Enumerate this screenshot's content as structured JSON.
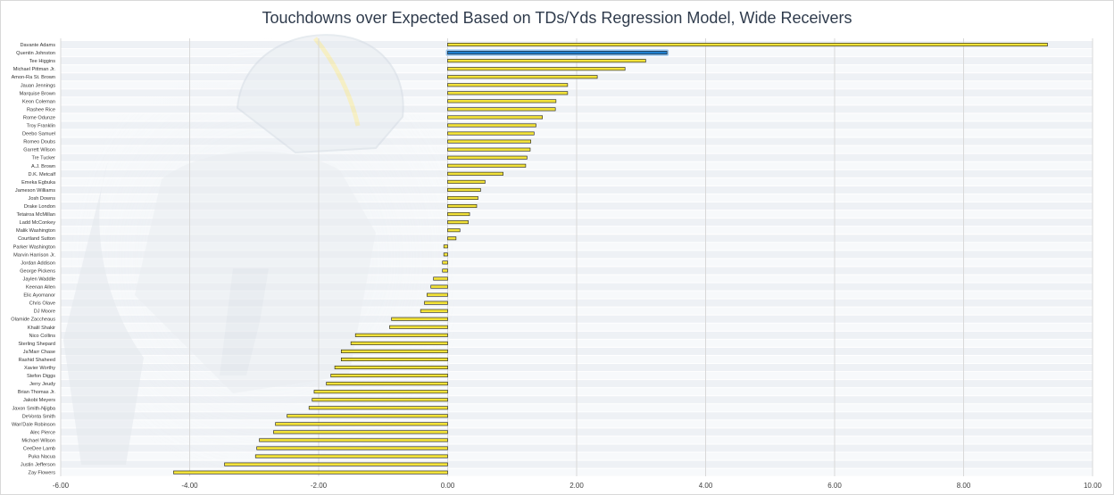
{
  "chart_data": {
    "type": "bar",
    "orientation": "horizontal",
    "title": "Touchdowns over Expected Based on TDs/Yds Regression Model, Wide Receivers",
    "xlabel": "",
    "ylabel": "",
    "xlim": [
      -6,
      10
    ],
    "xticks": [
      "-6.00",
      "-4.00",
      "-2.00",
      "0.00",
      "2.00",
      "4.00",
      "6.00",
      "8.00",
      "10.00"
    ],
    "grid": true,
    "legend": "none",
    "highlight": "Quentin Johnston",
    "colors": {
      "bar_fill": "#f2e23a",
      "bar_stroke": "#1a1a1a",
      "highlight_fill": "#1f7fcf",
      "highlight_glow": "#9cc8ef",
      "gridline": "#d9d9d9",
      "band": "#eef1f5"
    },
    "categories": [
      "Davante Adams",
      "Quentin Johnston",
      "Tee Higgins",
      "Michael Pittman Jr.",
      "Amon-Ra St. Brown",
      "Jauan Jennings",
      "Marquise Brown",
      "Keon Coleman",
      "Rashee Rice",
      "Rome Odunze",
      "Troy Franklin",
      "Deebo Samuel",
      "Romeo Doubs",
      "Garrett Wilson",
      "Tre Tucker",
      "A.J. Brown",
      "D.K. Metcalf",
      "Emeka Egbuka",
      "Jameson Williams",
      "Josh Downs",
      "Drake London",
      "Tetairoa McMillan",
      "Ladd McConkey",
      "Malik Washington",
      "Courtland Sutton",
      "Parker Washington",
      "Marvin Harrison Jr.",
      "Jordan Addison",
      "George Pickens",
      "Jaylen Waddle",
      "Keenan Allen",
      "Elic Ayomanor",
      "Chris Olave",
      "DJ Moore",
      "Olamide Zaccheaus",
      "Khalil Shakir",
      "Nico Collins",
      "Sterling Shepard",
      "Ja'Marr Chase",
      "Rashid Shaheed",
      "Xavier Worthy",
      "Stefon Diggs",
      "Jerry Jeudy",
      "Brian Thomas Jr.",
      "Jakobi Meyers",
      "Jaxon Smith-Njigba",
      "DeVonta Smith",
      "Wan'Dale Robinson",
      "Alec Pierce",
      "Michael Wilson",
      "CeeDee Lamb",
      "Puka Nacua",
      "Justin Jefferson",
      "Zay Flowers"
    ],
    "values": [
      9.3,
      3.4,
      3.07,
      2.75,
      2.32,
      1.86,
      1.86,
      1.68,
      1.67,
      1.47,
      1.37,
      1.34,
      1.29,
      1.28,
      1.23,
      1.21,
      0.86,
      0.58,
      0.51,
      0.47,
      0.45,
      0.34,
      0.32,
      0.19,
      0.13,
      -0.06,
      -0.06,
      -0.08,
      -0.08,
      -0.22,
      -0.26,
      -0.32,
      -0.36,
      -0.42,
      -0.87,
      -0.9,
      -1.43,
      -1.5,
      -1.65,
      -1.65,
      -1.75,
      -1.81,
      -1.88,
      -2.07,
      -2.1,
      -2.15,
      -2.49,
      -2.67,
      -2.7,
      -2.92,
      -2.96,
      -2.98,
      -3.46,
      -4.25
    ]
  }
}
